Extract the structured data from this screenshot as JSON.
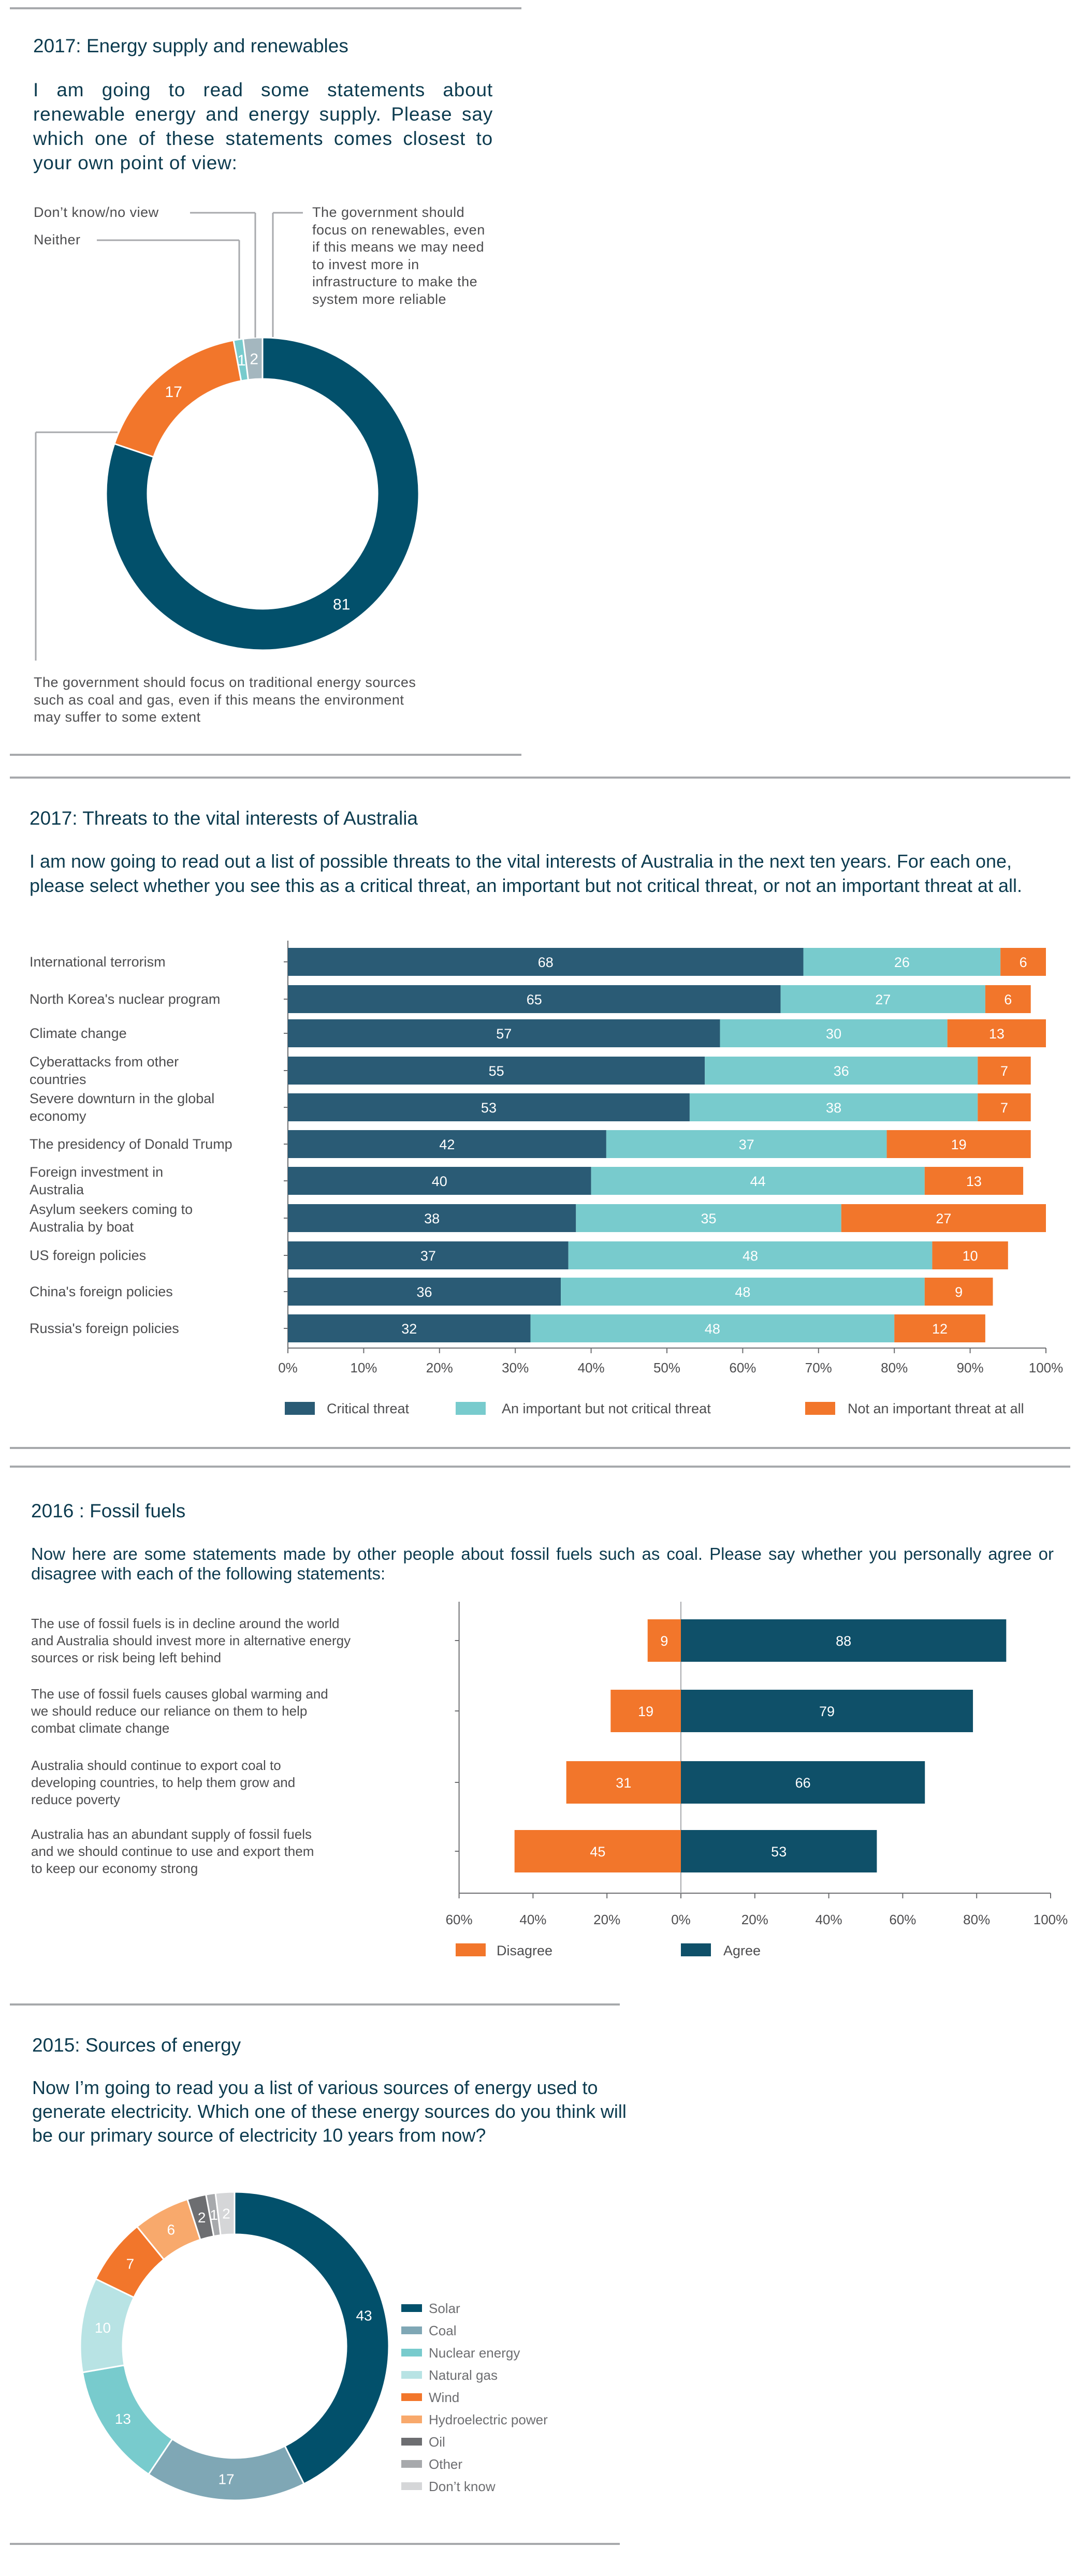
{
  "sections": {
    "energy_supply": {
      "title": "2017: Energy supply and renewables",
      "question": "I am going to read some statements about renewable energy and energy supply. Please say which one of these statements comes closest to your own point of view:",
      "label_dont_know": "Don’t know/no view",
      "label_neither": "Neither",
      "label_renewables": "The government should focus on renewables, even if this means we may need to invest more in infrastructure to make the system more reliable",
      "label_traditional": "The government should focus on traditional energy sources such as coal and gas, even if this means the environment may suffer to some extent"
    },
    "threats": {
      "title": "2017: Threats to the vital interests of Australia",
      "question": "I am now going to read out a list of possible threats to the vital interests of Australia in the next ten years. For each one, please select whether you see this as a critical threat, an important but not critical threat, or not an important threat at all."
    },
    "fossil": {
      "title": "2016 : Fossil fuels",
      "question": "Now here are some statements made by other people about fossil fuels such as coal. Please say whether you personally agree or disagree with each of the following statements:"
    },
    "sources": {
      "title": "2015: Sources of energy",
      "question": "Now I’m going to read you a list of various sources of energy used to generate electricity. Which one of these energy sources do you think will be our primary source of electricity 10 years from now?"
    }
  },
  "chart_data": [
    {
      "type": "pie",
      "donut": true,
      "labels": [
        "The government should focus on traditional energy sources such as coal and gas, even if this means the environment may suffer to some extent",
        "The government should focus on renewables, even if this means we may need to invest more in infrastructure to make the system more reliable",
        "Neither",
        "Don’t know/no view"
      ],
      "values": [
        81,
        17,
        1,
        2
      ],
      "colors": [
        "#02506b",
        "#f2762b",
        "#78cbcd",
        "#a4b7bf"
      ]
    },
    {
      "type": "bar",
      "orientation": "horizontal",
      "stacked": true,
      "categories": [
        "International terrorism",
        "North Korea's nuclear program",
        "Climate change",
        "Cyberattacks from other countries",
        "Severe downturn in the global economy",
        "The presidency of Donald Trump",
        "Foreign investment in Australia",
        "Asylum seekers coming to Australia by boat",
        "US foreign policies",
        "China's foreign policies",
        "Russia's foreign policies"
      ],
      "series": [
        {
          "name": "Critical threat",
          "color": "#2a5b75",
          "values": [
            68,
            65,
            57,
            55,
            53,
            42,
            40,
            38,
            37,
            36,
            32
          ]
        },
        {
          "name": "An important but not critical threat",
          "color": "#78cbcd",
          "values": [
            26,
            27,
            30,
            36,
            38,
            37,
            44,
            35,
            48,
            48,
            48
          ]
        },
        {
          "name": "Not an important threat at all",
          "color": "#f2762b",
          "values": [
            6,
            6,
            13,
            7,
            7,
            19,
            13,
            27,
            10,
            9,
            12
          ]
        }
      ],
      "xlim": [
        0,
        100
      ],
      "xticks": [
        "0%",
        "10%",
        "20%",
        "30%",
        "40%",
        "50%",
        "60%",
        "70%",
        "80%",
        "90%",
        "100%"
      ],
      "legend": "bottom"
    },
    {
      "type": "bar",
      "orientation": "horizontal",
      "diverging": true,
      "categories": [
        "The use of fossil fuels is in decline around the world and Australia should invest more in alternative energy sources or risk being left behind",
        "The use of fossil fuels causes global warming and we should reduce our reliance on them to help combat climate change",
        "Australia should continue to export coal to developing countries, to help them grow and reduce poverty",
        "Australia has an abundant supply of fossil fuels and we should continue to use and export them to keep our economy strong"
      ],
      "series": [
        {
          "name": "Disagree",
          "color": "#f2762b",
          "values": [
            9,
            19,
            31,
            45
          ]
        },
        {
          "name": "Agree",
          "color": "#0f5069",
          "values": [
            88,
            79,
            66,
            53
          ]
        }
      ],
      "xlim": [
        -60,
        100
      ],
      "xticks": [
        "60%",
        "40%",
        "20%",
        "0%",
        "20%",
        "40%",
        "60%",
        "80%",
        "100%"
      ],
      "legend": "bottom"
    },
    {
      "type": "pie",
      "donut": true,
      "labels": [
        "Solar",
        "Coal",
        "Nuclear energy",
        "Natural gas",
        "Wind",
        "Hydroelectric power",
        "Oil",
        "Other",
        "Don’t know"
      ],
      "values": [
        43,
        17,
        13,
        10,
        7,
        6,
        2,
        1,
        2
      ],
      "colors": [
        "#02506b",
        "#7fa7b5",
        "#78cbcd",
        "#b8e3e4",
        "#f2762b",
        "#f8a96c",
        "#6d6e71",
        "#a7a9ac",
        "#d5d6d8"
      ],
      "legend": "right"
    }
  ]
}
